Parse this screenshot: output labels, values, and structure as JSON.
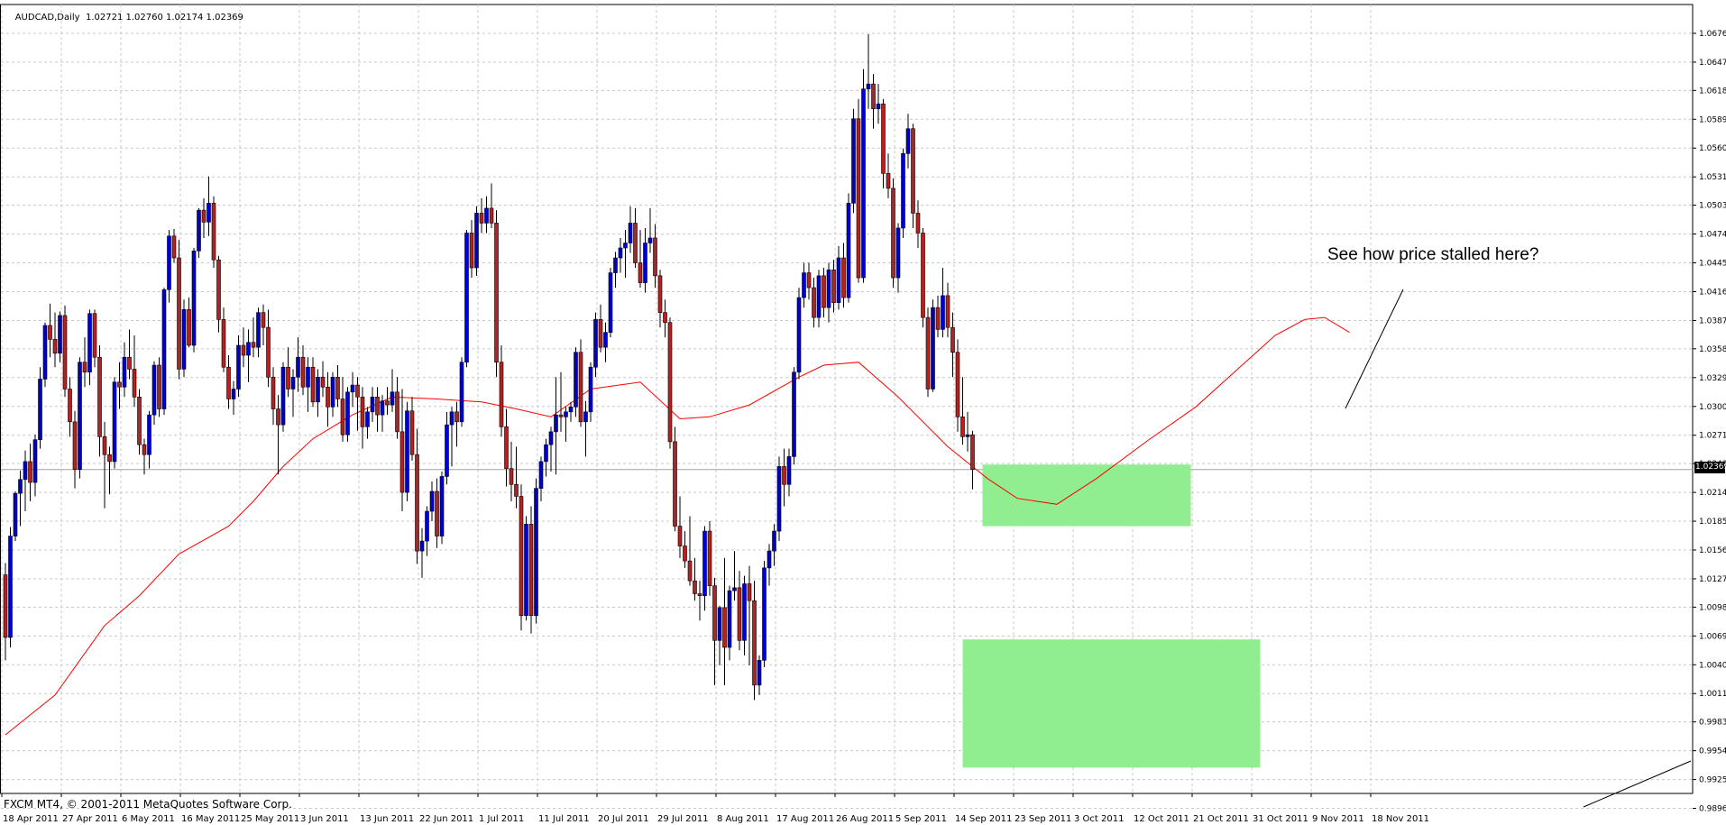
{
  "header": {
    "symbol": "AUDCAD,Daily",
    "ohlc": "1.02721 1.02760 1.02174 1.02369"
  },
  "footer": {
    "copyright": "FXCM MT4, © 2001-2011 MetaQuotes Software Corp."
  },
  "annotation": {
    "text": "See how price stalled here?"
  },
  "current_price": "1.02369",
  "colors": {
    "bull": "#0000cc",
    "bear": "#b22222",
    "wick": "#000000",
    "ma": "#ff0000",
    "zone": "#90ee90",
    "grid": "#c8c8c8"
  },
  "chart_data": {
    "type": "candlestick",
    "title": "AUDCAD,Daily",
    "ylim": [
      0.9911,
      1.0705
    ],
    "y_ticks": [
      "1.06760",
      "1.06470",
      "1.06185",
      "1.05895",
      "1.05605",
      "1.05315",
      "1.05030",
      "1.04740",
      "1.04450",
      "1.04160",
      "1.03870",
      "1.03585",
      "1.03295",
      "1.03005",
      "1.02715",
      "1.02430",
      "1.02140",
      "1.01850",
      "1.01560",
      "1.01270",
      "1.00985",
      "1.00695",
      "1.00405",
      "1.00115",
      "0.99830",
      "0.99540",
      "0.99250",
      "0.98960"
    ],
    "x_labels": [
      "18 Apr 2011",
      "27 Apr 2011",
      "6 May 2011",
      "16 May 2011",
      "25 May 2011",
      "3 Jun 2011",
      "13 Jun 2011",
      "22 Jun 2011",
      "1 Jul 2011",
      "11 Jul 2011",
      "20 Jul 2011",
      "29 Jul 2011",
      "8 Aug 2011",
      "17 Aug 2011",
      "26 Aug 2011",
      "5 Sep 2011",
      "14 Sep 2011",
      "23 Sep 2011",
      "3 Oct 2011",
      "12 Oct 2011",
      "21 Oct 2011",
      "31 Oct 2011",
      "9 Nov 2011",
      "18 Nov 2011"
    ],
    "candles": [
      [
        1.0131,
        1.0143,
        1.0045,
        1.0068
      ],
      [
        1.0068,
        1.0179,
        1.0058,
        1.017
      ],
      [
        1.017,
        1.0215,
        1.0165,
        1.0213
      ],
      [
        1.0213,
        1.0236,
        1.018,
        1.0227
      ],
      [
        1.0227,
        1.0256,
        1.0195,
        1.0245
      ],
      [
        1.0245,
        1.0263,
        1.0205,
        1.0224
      ],
      [
        1.0224,
        1.0272,
        1.021,
        1.0267
      ],
      [
        1.0267,
        1.034,
        1.0258,
        1.0328
      ],
      [
        1.0328,
        1.0385,
        1.032,
        1.0382
      ],
      [
        1.0382,
        1.0404,
        1.035,
        1.0368
      ],
      [
        1.0368,
        1.0395,
        1.034,
        1.0354
      ],
      [
        1.0354,
        1.0396,
        1.0345,
        1.0392
      ],
      [
        1.0392,
        1.0402,
        1.031,
        1.0318
      ],
      [
        1.0318,
        1.033,
        1.027,
        1.0285
      ],
      [
        1.0285,
        1.0296,
        1.0218,
        1.0237
      ],
      [
        1.0237,
        1.035,
        1.0228,
        1.0345
      ],
      [
        1.0345,
        1.037,
        1.032,
        1.0335
      ],
      [
        1.0335,
        1.0398,
        1.0322,
        1.0394
      ],
      [
        1.0394,
        1.0398,
        1.034,
        1.035
      ],
      [
        1.035,
        1.0362,
        1.025,
        1.027
      ],
      [
        1.027,
        1.0285,
        1.0198,
        1.0252
      ],
      [
        1.0252,
        1.026,
        1.0212,
        1.0245
      ],
      [
        1.0245,
        1.033,
        1.0238,
        1.0325
      ],
      [
        1.0325,
        1.0345,
        1.0298,
        1.032
      ],
      [
        1.032,
        1.0365,
        1.031,
        1.035
      ],
      [
        1.035,
        1.0378,
        1.0328,
        1.0338
      ],
      [
        1.0338,
        1.0372,
        1.03,
        1.031
      ],
      [
        1.031,
        1.0318,
        1.0252,
        1.0262
      ],
      [
        1.0262,
        1.0268,
        1.0232,
        1.0252
      ],
      [
        1.0252,
        1.0296,
        1.0238,
        1.0292
      ],
      [
        1.0292,
        1.0346,
        1.0282,
        1.0342
      ],
      [
        1.0342,
        1.035,
        1.029,
        1.0298
      ],
      [
        1.0298,
        1.042,
        1.0292,
        1.0418
      ],
      [
        1.0418,
        1.0478,
        1.0405,
        1.0472
      ],
      [
        1.0472,
        1.0479,
        1.0445,
        1.045
      ],
      [
        1.045,
        1.0468,
        1.0328,
        1.0338
      ],
      [
        1.0338,
        1.0408,
        1.033,
        1.0398
      ],
      [
        1.0398,
        1.041,
        1.036,
        1.0362
      ],
      [
        1.0362,
        1.046,
        1.0355,
        1.0457
      ],
      [
        1.0457,
        1.05,
        1.045,
        1.0498
      ],
      [
        1.0498,
        1.051,
        1.047,
        1.0486
      ],
      [
        1.0486,
        1.0532,
        1.0472,
        1.0505
      ],
      [
        1.0505,
        1.0512,
        1.044,
        1.0448
      ],
      [
        1.0448,
        1.0452,
        1.0375,
        1.0388
      ],
      [
        1.0388,
        1.04,
        1.0335,
        1.034
      ],
      [
        1.034,
        1.0352,
        1.0298,
        1.0308
      ],
      [
        1.0308,
        1.0326,
        1.0292,
        1.0318
      ],
      [
        1.0318,
        1.0372,
        1.031,
        1.0362
      ],
      [
        1.0362,
        1.038,
        1.034,
        1.0352
      ],
      [
        1.0352,
        1.0378,
        1.0325,
        1.0365
      ],
      [
        1.0365,
        1.039,
        1.035,
        1.036
      ],
      [
        1.036,
        1.04,
        1.035,
        1.0395
      ],
      [
        1.0395,
        1.0403,
        1.0362,
        1.038
      ],
      [
        1.038,
        1.0398,
        1.032,
        1.033
      ],
      [
        1.033,
        1.034,
        1.0282,
        1.0298
      ],
      [
        1.0298,
        1.0312,
        1.0232,
        1.0282
      ],
      [
        1.0282,
        1.0345,
        1.0275,
        1.034
      ],
      [
        1.034,
        1.036,
        1.031,
        1.0318
      ],
      [
        1.0318,
        1.0338,
        1.029,
        1.033
      ],
      [
        1.033,
        1.037,
        1.0315,
        1.035
      ],
      [
        1.035,
        1.0362,
        1.0312,
        1.032
      ],
      [
        1.032,
        1.035,
        1.0295,
        1.034
      ],
      [
        1.034,
        1.035,
        1.03,
        1.0305
      ],
      [
        1.0305,
        1.0338,
        1.029,
        1.033
      ],
      [
        1.033,
        1.0346,
        1.031,
        1.032
      ],
      [
        1.032,
        1.0335,
        1.028,
        1.03
      ],
      [
        1.03,
        1.0335,
        1.029,
        1.033
      ],
      [
        1.033,
        1.0342,
        1.03,
        1.0308
      ],
      [
        1.0308,
        1.033,
        1.0265,
        1.0272
      ],
      [
        1.0272,
        1.032,
        1.0265,
        1.0315
      ],
      [
        1.0315,
        1.0335,
        1.03,
        1.0322
      ],
      [
        1.0322,
        1.033,
        1.0276,
        1.031
      ],
      [
        1.031,
        1.032,
        1.0258,
        1.028
      ],
      [
        1.028,
        1.03,
        1.0268,
        1.0295
      ],
      [
        1.0295,
        1.032,
        1.0285,
        1.031
      ],
      [
        1.031,
        1.032,
        1.0275,
        1.0292
      ],
      [
        1.0292,
        1.0312,
        1.0275,
        1.0306
      ],
      [
        1.0306,
        1.032,
        1.0292,
        1.0302
      ],
      [
        1.0302,
        1.0338,
        1.0295,
        1.0315
      ],
      [
        1.0315,
        1.033,
        1.0268,
        1.0275
      ],
      [
        1.0275,
        1.0318,
        1.0195,
        1.0214
      ],
      [
        1.0214,
        1.0305,
        1.0205,
        1.0296
      ],
      [
        1.0296,
        1.031,
        1.0246,
        1.0252
      ],
      [
        1.0252,
        1.0278,
        1.0142,
        1.0155
      ],
      [
        1.0155,
        1.0178,
        1.0128,
        1.0165
      ],
      [
        1.0165,
        1.02,
        1.015,
        1.0195
      ],
      [
        1.0195,
        1.0225,
        1.0185,
        1.0215
      ],
      [
        1.0215,
        1.0228,
        1.0158,
        1.017
      ],
      [
        1.017,
        1.0235,
        1.0162,
        1.023
      ],
      [
        1.023,
        1.0295,
        1.0222,
        1.0282
      ],
      [
        1.0282,
        1.03,
        1.024,
        1.0295
      ],
      [
        1.0295,
        1.0305,
        1.026,
        1.0285
      ],
      [
        1.0285,
        1.035,
        1.028,
        1.0345
      ],
      [
        1.0345,
        1.0478,
        1.034,
        1.0475
      ],
      [
        1.0475,
        1.0488,
        1.043,
        1.044
      ],
      [
        1.044,
        1.0502,
        1.0432,
        1.0495
      ],
      [
        1.0495,
        1.051,
        1.0475,
        1.0485
      ],
      [
        1.0485,
        1.0512,
        1.0475,
        1.05
      ],
      [
        1.05,
        1.0525,
        1.048,
        1.0485
      ],
      [
        1.0485,
        1.0498,
        1.033,
        1.0345
      ],
      [
        1.0345,
        1.0362,
        1.027,
        1.028
      ],
      [
        1.028,
        1.0298,
        1.022,
        1.0238
      ],
      [
        1.0238,
        1.0265,
        1.0205,
        1.0222
      ],
      [
        1.0222,
        1.026,
        1.0198,
        1.021
      ],
      [
        1.021,
        1.0222,
        1.0075,
        1.009
      ],
      [
        1.009,
        1.019,
        1.0085,
        1.0182
      ],
      [
        1.0182,
        1.02,
        1.0072,
        1.009
      ],
      [
        1.009,
        1.0228,
        1.0082,
        1.0218
      ],
      [
        1.0218,
        1.025,
        1.0205,
        1.0245
      ],
      [
        1.0245,
        1.0268,
        1.023,
        1.0262
      ],
      [
        1.0262,
        1.028,
        1.0235,
        1.0275
      ],
      [
        1.0275,
        1.033,
        1.0232,
        1.0292
      ],
      [
        1.0292,
        1.0335,
        1.0275,
        1.029
      ],
      [
        1.029,
        1.03,
        1.0265,
        1.0295
      ],
      [
        1.0295,
        1.0305,
        1.0285,
        1.03
      ],
      [
        1.03,
        1.036,
        1.029,
        1.0355
      ],
      [
        1.0355,
        1.0368,
        1.028,
        1.0285
      ],
      [
        1.0285,
        1.0306,
        1.025,
        1.0295
      ],
      [
        1.0295,
        1.0345,
        1.0285,
        1.034
      ],
      [
        1.034,
        1.0395,
        1.033,
        1.0388
      ],
      [
        1.0388,
        1.0403,
        1.0355,
        1.036
      ],
      [
        1.036,
        1.0385,
        1.0345,
        1.0375
      ],
      [
        1.0375,
        1.044,
        1.037,
        1.0435
      ],
      [
        1.0435,
        1.0456,
        1.042,
        1.045
      ],
      [
        1.045,
        1.047,
        1.0435,
        1.046
      ],
      [
        1.046,
        1.0478,
        1.043,
        1.0465
      ],
      [
        1.0465,
        1.0502,
        1.0455,
        1.0485
      ],
      [
        1.0485,
        1.05,
        1.044,
        1.0445
      ],
      [
        1.0445,
        1.0478,
        1.042,
        1.0425
      ],
      [
        1.0425,
        1.048,
        1.0415,
        1.0465
      ],
      [
        1.0465,
        1.05,
        1.0455,
        1.047
      ],
      [
        1.047,
        1.0484,
        1.042,
        1.0432
      ],
      [
        1.0432,
        1.0438,
        1.038,
        1.0395
      ],
      [
        1.0395,
        1.0408,
        1.037,
        1.0385
      ],
      [
        1.0385,
        1.039,
        1.0258,
        1.0265
      ],
      [
        1.0265,
        1.028,
        1.0175,
        1.018
      ],
      [
        1.018,
        1.021,
        1.0148,
        1.016
      ],
      [
        1.016,
        1.0175,
        1.0138,
        1.0145
      ],
      [
        1.0145,
        1.019,
        1.012,
        1.0125
      ],
      [
        1.0125,
        1.0148,
        1.0105,
        1.0112
      ],
      [
        1.0112,
        1.0125,
        1.0085,
        1.011
      ],
      [
        1.011,
        1.018,
        1.0095,
        1.0175
      ],
      [
        1.0175,
        1.0185,
        1.011,
        1.012
      ],
      [
        1.012,
        1.0128,
        1.002,
        1.0065
      ],
      [
        1.0065,
        1.01,
        1.004,
        1.0098
      ],
      [
        1.0098,
        1.0148,
        1.002,
        1.0058
      ],
      [
        1.0058,
        1.012,
        1.0045,
        1.0115
      ],
      [
        1.0115,
        1.0155,
        1.0105,
        1.0118
      ],
      [
        1.0118,
        1.0135,
        1.0055,
        1.0065
      ],
      [
        1.0065,
        1.013,
        1.005,
        1.0122
      ],
      [
        1.0122,
        1.014,
        1.004,
        1.0105
      ],
      [
        1.0105,
        1.0125,
        1.0005,
        1.002
      ],
      [
        1.002,
        1.005,
        1.001,
        1.0045
      ],
      [
        1.0045,
        1.0145,
        1.0038,
        1.0138
      ],
      [
        1.0138,
        1.0162,
        1.012,
        1.0155
      ],
      [
        1.0155,
        1.0182,
        1.014,
        1.0175
      ],
      [
        1.0175,
        1.025,
        1.0165,
        1.024
      ],
      [
        1.024,
        1.0258,
        1.02,
        1.0222
      ],
      [
        1.0222,
        1.0258,
        1.021,
        1.025
      ],
      [
        1.025,
        1.034,
        1.0242,
        1.0335
      ],
      [
        1.0335,
        1.042,
        1.0328,
        1.041
      ],
      [
        1.041,
        1.0445,
        1.04,
        1.0435
      ],
      [
        1.0435,
        1.0445,
        1.0408,
        1.042
      ],
      [
        1.042,
        1.043,
        1.038,
        1.039
      ],
      [
        1.039,
        1.0438,
        1.038,
        1.0432
      ],
      [
        1.0432,
        1.044,
        1.039,
        1.04
      ],
      [
        1.04,
        1.0445,
        1.0385,
        1.0438
      ],
      [
        1.0438,
        1.0448,
        1.0395,
        1.0405
      ],
      [
        1.0405,
        1.0462,
        1.0398,
        1.045
      ],
      [
        1.045,
        1.0465,
        1.04,
        1.041
      ],
      [
        1.041,
        1.0515,
        1.0405,
        1.0505
      ],
      [
        1.0505,
        1.06,
        1.0495,
        1.059
      ],
      [
        1.059,
        1.061,
        1.0425,
        1.043
      ],
      [
        1.043,
        1.064,
        1.0425,
        1.062
      ],
      [
        1.062,
        1.0675,
        1.06,
        1.0625
      ],
      [
        1.0625,
        1.0635,
        1.058,
        1.06
      ],
      [
        1.06,
        1.0625,
        1.0585,
        1.0605
      ],
      [
        1.0605,
        1.061,
        1.052,
        1.0535
      ],
      [
        1.0535,
        1.0555,
        1.051,
        1.052
      ],
      [
        1.052,
        1.053,
        1.042,
        1.043
      ],
      [
        1.043,
        1.0485,
        1.0415,
        1.048
      ],
      [
        1.048,
        1.056,
        1.047,
        1.0555
      ],
      [
        1.0555,
        1.0595,
        1.054,
        1.058
      ],
      [
        1.058,
        1.0585,
        1.048,
        1.0495
      ],
      [
        1.0495,
        1.0508,
        1.046,
        1.0475
      ],
      [
        1.0475,
        1.048,
        1.038,
        1.039
      ],
      [
        1.039,
        1.04,
        1.031,
        1.0318
      ],
      [
        1.0318,
        1.0408,
        1.0315,
        1.04
      ],
      [
        1.04,
        1.0412,
        1.037,
        1.0378
      ],
      [
        1.0378,
        1.044,
        1.037,
        1.0412
      ],
      [
        1.0412,
        1.0425,
        1.037,
        1.038
      ],
      [
        1.038,
        1.0395,
        1.033,
        1.0355
      ],
      [
        1.0355,
        1.0368,
        1.0275,
        1.029
      ],
      [
        1.029,
        1.033,
        1.0262,
        1.027
      ],
      [
        1.027,
        1.0295,
        1.0255,
        1.0272
      ],
      [
        1.0272,
        1.0276,
        1.0217,
        1.0237
      ]
    ],
    "ma_points": [
      [
        0,
        0.997
      ],
      [
        10,
        1.001
      ],
      [
        20,
        1.008
      ],
      [
        27,
        1.011
      ],
      [
        35,
        1.0152
      ],
      [
        45,
        1.018
      ],
      [
        50,
        1.0205
      ],
      [
        56,
        1.024
      ],
      [
        62,
        1.0268
      ],
      [
        70,
        1.0292
      ],
      [
        78,
        1.031
      ],
      [
        87,
        1.0308
      ],
      [
        96,
        1.0305
      ],
      [
        103,
        1.0298
      ],
      [
        110,
        1.029
      ],
      [
        118,
        1.0318
      ],
      [
        128,
        1.0325
      ],
      [
        136,
        1.0288
      ],
      [
        142,
        1.029
      ],
      [
        150,
        1.0302
      ],
      [
        160,
        1.033
      ],
      [
        165,
        1.0342
      ],
      [
        172,
        1.0345
      ],
      [
        180,
        1.031
      ],
      [
        190,
        1.026
      ],
      [
        198,
        1.0228
      ],
      [
        204,
        1.0208
      ],
      [
        212,
        1.0202
      ],
      [
        220,
        1.0228
      ],
      [
        230,
        1.0265
      ],
      [
        240,
        1.03
      ],
      [
        250,
        1.0345
      ],
      [
        256,
        1.0372
      ],
      [
        262,
        1.0388
      ],
      [
        266,
        1.039
      ],
      [
        271,
        1.0375
      ]
    ],
    "zones": [
      {
        "name": "support-zone-upper",
        "x_from": 197,
        "x_to": 239,
        "y_top": 1.0242,
        "y_bottom": 1.018
      },
      {
        "name": "support-zone-lower",
        "x_from": 193,
        "x_to": 253,
        "y_top": 1.0066,
        "y_bottom": 0.9937
      }
    ],
    "hline": 1.0237
  }
}
